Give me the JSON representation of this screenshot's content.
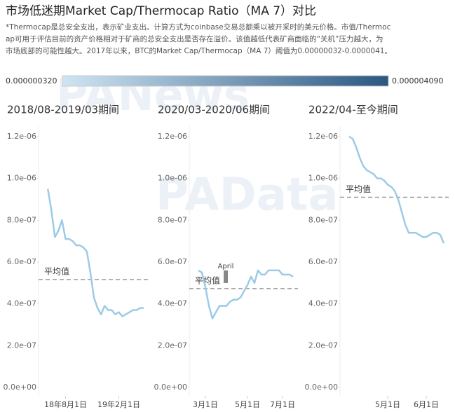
{
  "title": "市场低迷期Market Cap/Thermocap Ratio（MA 7）对比",
  "subtitle_lines": [
    "*Thermocap是总安全支出，表示矿业支出。计算方式为coinbase交易总额乘以被开采时的美元价格。市值/Thermoc",
    "ap可用于评估目前的资产价格相对于矿商的总安全支出是否存在溢价。该值越低代表矿商面临的“关机”压力越大，为",
    "市场底部的可能性越大。2017年以来，BTC的Market Cap/Thermocap（MA 7）阈值为0.00000032-0.0000041。"
  ],
  "color_legend": {
    "min_label": "0.000000320",
    "max_label": "0.000004090",
    "min_color": "#cfe5f3",
    "max_color": "#2c5781"
  },
  "watermarks": [
    "PANews",
    "PAData"
  ],
  "chart_data": [
    {
      "type": "line",
      "title": "2018/08-2019/03期间",
      "color": "#9ccbe6",
      "values": [
        9.5e-07,
        8.5e-07,
        7.2e-07,
        7.5e-07,
        8e-07,
        7.1e-07,
        7.1e-07,
        7e-07,
        6.8e-07,
        6.8e-07,
        6.7e-07,
        6.5e-07,
        5.5e-07,
        4.3e-07,
        3.8e-07,
        3.5e-07,
        3.9e-07,
        3.7e-07,
        3.7e-07,
        3.5e-07,
        3.6e-07,
        3.4e-07,
        3.5e-07,
        3.6e-07,
        3.7e-07,
        3.7e-07,
        3.8e-07,
        3.8e-07
      ],
      "xlim": [
        -2.6,
        28.4
      ],
      "xticks": [
        {
          "value": 5,
          "label": "18年8月1日"
        },
        {
          "value": 20,
          "label": "19年2月1日"
        }
      ],
      "ylim": [
        0,
        1.25e-06
      ],
      "yticks": [
        {
          "value": 0,
          "label": "0.0e+00"
        },
        {
          "value": 2e-07,
          "label": "2.0e-07"
        },
        {
          "value": 4e-07,
          "label": "4.0e-07"
        },
        {
          "value": 6e-07,
          "label": "6.0e-07"
        },
        {
          "value": 8e-07,
          "label": "8.0e-07"
        },
        {
          "value": 1e-06,
          "label": "1.0e-06"
        },
        {
          "value": 1.2e-06,
          "label": "1.2e-06"
        }
      ],
      "mean": {
        "label": "平均值",
        "value": 5.16e-07
      }
    },
    {
      "type": "line",
      "title": "2020/03-2020/06期间",
      "color": "#9ccbe6",
      "values": [
        5.6e-07,
        5.5e-07,
        4.8e-07,
        3.9e-07,
        3.3e-07,
        3.6e-07,
        3.9e-07,
        3.9e-07,
        3.9e-07,
        4.1e-07,
        4.2e-07,
        4.2e-07,
        4.3e-07,
        4.6e-07,
        4.9e-07,
        5.3e-07,
        5e-07,
        5.6e-07,
        5.4e-07,
        5.4e-07,
        5.6e-07,
        5.6e-07,
        5.6e-07,
        5.6e-07,
        5.4e-07,
        5.4e-07,
        5.4e-07,
        5.3e-07
      ],
      "xlim": [
        -2.6,
        28.4
      ],
      "xticks": [
        {
          "value": 2,
          "label": "3月1日"
        },
        {
          "value": 14,
          "label": "5月1日"
        },
        {
          "value": 24,
          "label": "7月1日"
        }
      ],
      "ylim": [
        0,
        1.25e-06
      ],
      "yticks": [
        {
          "value": 0,
          "label": "0.0e+00"
        },
        {
          "value": 2e-07,
          "label": "2.0e-07"
        },
        {
          "value": 4e-07,
          "label": "4.0e-07"
        },
        {
          "value": 6e-07,
          "label": "6.0e-07"
        },
        {
          "value": 8e-07,
          "label": "8.0e-07"
        },
        {
          "value": 1e-06,
          "label": "1.0e-06"
        },
        {
          "value": 1.2e-06,
          "label": "1.2e-06"
        }
      ],
      "mean": {
        "label": "平均值",
        "value": 4.73e-07
      },
      "annotation": {
        "text": "April",
        "x": 7.8,
        "y": 5.8e-07
      }
    },
    {
      "type": "line",
      "title": "2022/04-至今期间",
      "color": "#9ccbe6",
      "values": [
        1.2e-06,
        1.19e-06,
        1.15e-06,
        1.1e-06,
        1.06e-06,
        1.04e-06,
        1.03e-06,
        1.02e-06,
        1e-06,
        1e-06,
        9.9e-07,
        9.7e-07,
        9.6e-07,
        9.4e-07,
        9e-07,
        8.4e-07,
        7.8e-07,
        7.4e-07,
        7.4e-07,
        7.4e-07,
        7.3e-07,
        7.2e-07,
        7.2e-07,
        7.3e-07,
        7.4e-07,
        7.4e-07,
        7.3e-07,
        6.9e-07
      ],
      "xlim": [
        -2.6,
        28.4
      ],
      "xticks": [
        {
          "value": 11,
          "label": "5月1日"
        },
        {
          "value": 22,
          "label": "6月1日"
        }
      ],
      "ylim": [
        0,
        1.25e-06
      ],
      "yticks": [
        {
          "value": 0,
          "label": "0.0e+00"
        },
        {
          "value": 2e-07,
          "label": "2.0e-07"
        },
        {
          "value": 4e-07,
          "label": "4.0e-07"
        },
        {
          "value": 6e-07,
          "label": "6.0e-07"
        },
        {
          "value": 8e-07,
          "label": "8.0e-07"
        },
        {
          "value": 1e-06,
          "label": "1.0e-06"
        },
        {
          "value": 1.2e-06,
          "label": "1.2e-06"
        }
      ],
      "mean": {
        "label": "平均值",
        "value": 9.1e-07
      }
    }
  ]
}
